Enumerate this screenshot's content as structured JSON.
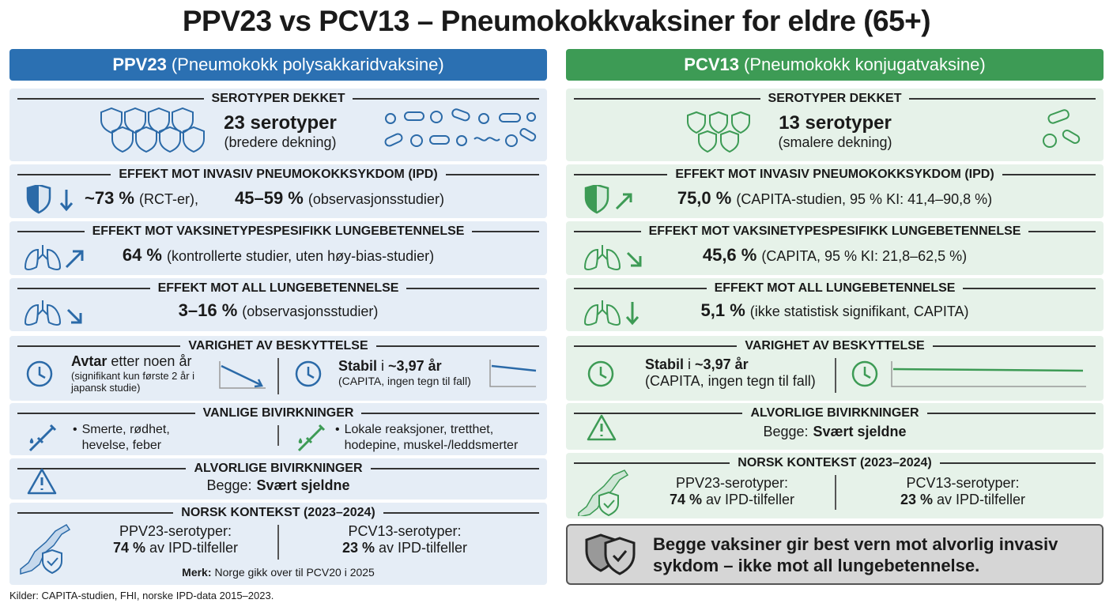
{
  "title": "PPV23 vs PCV13 – Pneumokokkvaksiner for eldre (65+)",
  "ppv23": {
    "header": {
      "name": "PPV23",
      "full": "(Pneumokokk polysakkaridvaksine)"
    },
    "serotypes": {
      "heading": "SEROTYPER DEKKET",
      "count": "23 serotyper",
      "note": "(bredere dekning)"
    },
    "ipd": {
      "heading": "EFFEKT MOT INVASIV PNEUMOKOKKSYKDOM (IPD)",
      "value1": "~73 %",
      "note1": "(RCT-er),",
      "value2": "45–59 %",
      "note2": "(observasjonsstudier)"
    },
    "vt_pneumonia": {
      "heading": "EFFEKT MOT VAKSINETYPESPESIFIKK LUNGEBETENNELSE",
      "value": "64 %",
      "note": "(kontrollerte studier, uten høy-bias-studier)"
    },
    "all_pneumonia": {
      "heading": "EFFEKT MOT ALL LUNGEBETENNELSE",
      "value": "3–16 %",
      "note": "(observasjonsstudier)"
    },
    "duration": {
      "heading": "VARIGHET AV BESKYTTELSE",
      "ppv23": {
        "bold": "Avtar",
        "rest": "etter noen år",
        "note": "(signifikant kun første 2 år i japansk studie)"
      },
      "pcv13": {
        "bold": "Stabil",
        "mid": "i",
        "bold2": "~3,97 år",
        "note": "(CAPITA, ingen tegn til fall)"
      }
    },
    "common_side_effects": {
      "heading": "VANLIGE BIVIRKNINGER",
      "ppv23": "Smerte, rødhet, hevelse, feber",
      "pcv13": "Lokale reaksjoner, tretthet, hodepine, muskel-/leddsmerter"
    },
    "serious_side_effects": {
      "heading": "ALVORLIGE BIVIRKNINGER",
      "label": "Begge:",
      "value": "Svært sjeldne"
    },
    "norway": {
      "heading": "NORSK KONTEKST (2023–2024)",
      "ppv23_label": "PPV23-serotyper:",
      "ppv23_value": "74 %",
      "ppv23_rest": "av IPD-tilfeller",
      "pcv13_label": "PCV13-serotyper:",
      "pcv13_value": "23 %",
      "pcv13_rest": "av IPD-tilfeller",
      "note_label": "Merk:",
      "note": "Norge gikk over til PCV20 i 2025"
    }
  },
  "pcv13": {
    "header": {
      "name": "PCV13",
      "full": "(Pneumokokk konjugatvaksine)"
    },
    "serotypes": {
      "heading": "SEROTYPER DEKKET",
      "count": "13 serotyper",
      "note": "(smalere dekning)"
    },
    "ipd": {
      "heading": "EFFEKT MOT INVASIV PNEUMOKOKKSYKDOM (IPD)",
      "value": "75,0 %",
      "note": "(CAPITA-studien, 95 % KI: 41,4–90,8 %)"
    },
    "vt_pneumonia": {
      "heading": "EFFEKT MOT VAKSINETYPESPESIFIKK LUNGEBETENNELSE",
      "value": "45,6 %",
      "note": "(CAPITA, 95 % KI: 21,8–62,5 %)"
    },
    "all_pneumonia": {
      "heading": "EFFEKT MOT ALL LUNGEBETENNELSE",
      "value": "5,1 %",
      "note": "(ikke statistisk signifikant, CAPITA)"
    },
    "duration": {
      "heading": "VARIGHET AV BESKYTTELSE",
      "bold": "Stabil",
      "mid": "i",
      "bold2": "~3,97 år",
      "note": "(CAPITA, ingen tegn til fall)"
    },
    "serious_side_effects": {
      "heading": "ALVORLIGE BIVIRKNINGER",
      "label": "Begge:",
      "value": "Svært sjeldne"
    },
    "norway": {
      "heading": "NORSK KONTEKST (2023–2024)",
      "ppv23_label": "PPV23-serotyper:",
      "ppv23_value": "74 %",
      "ppv23_rest": "av IPD-tilfeller",
      "pcv13_label": "PCV13-serotyper:",
      "pcv13_value": "23 %",
      "pcv13_rest": "av IPD-tilfeller"
    },
    "conclusion": "Begge vaksiner gir best vern mot alvorlig invasiv sykdom – ikke mot all lungebetennelse."
  },
  "footer": "Kilder: CAPITA-studien, FHI, norske IPD-data 2015–2023."
}
